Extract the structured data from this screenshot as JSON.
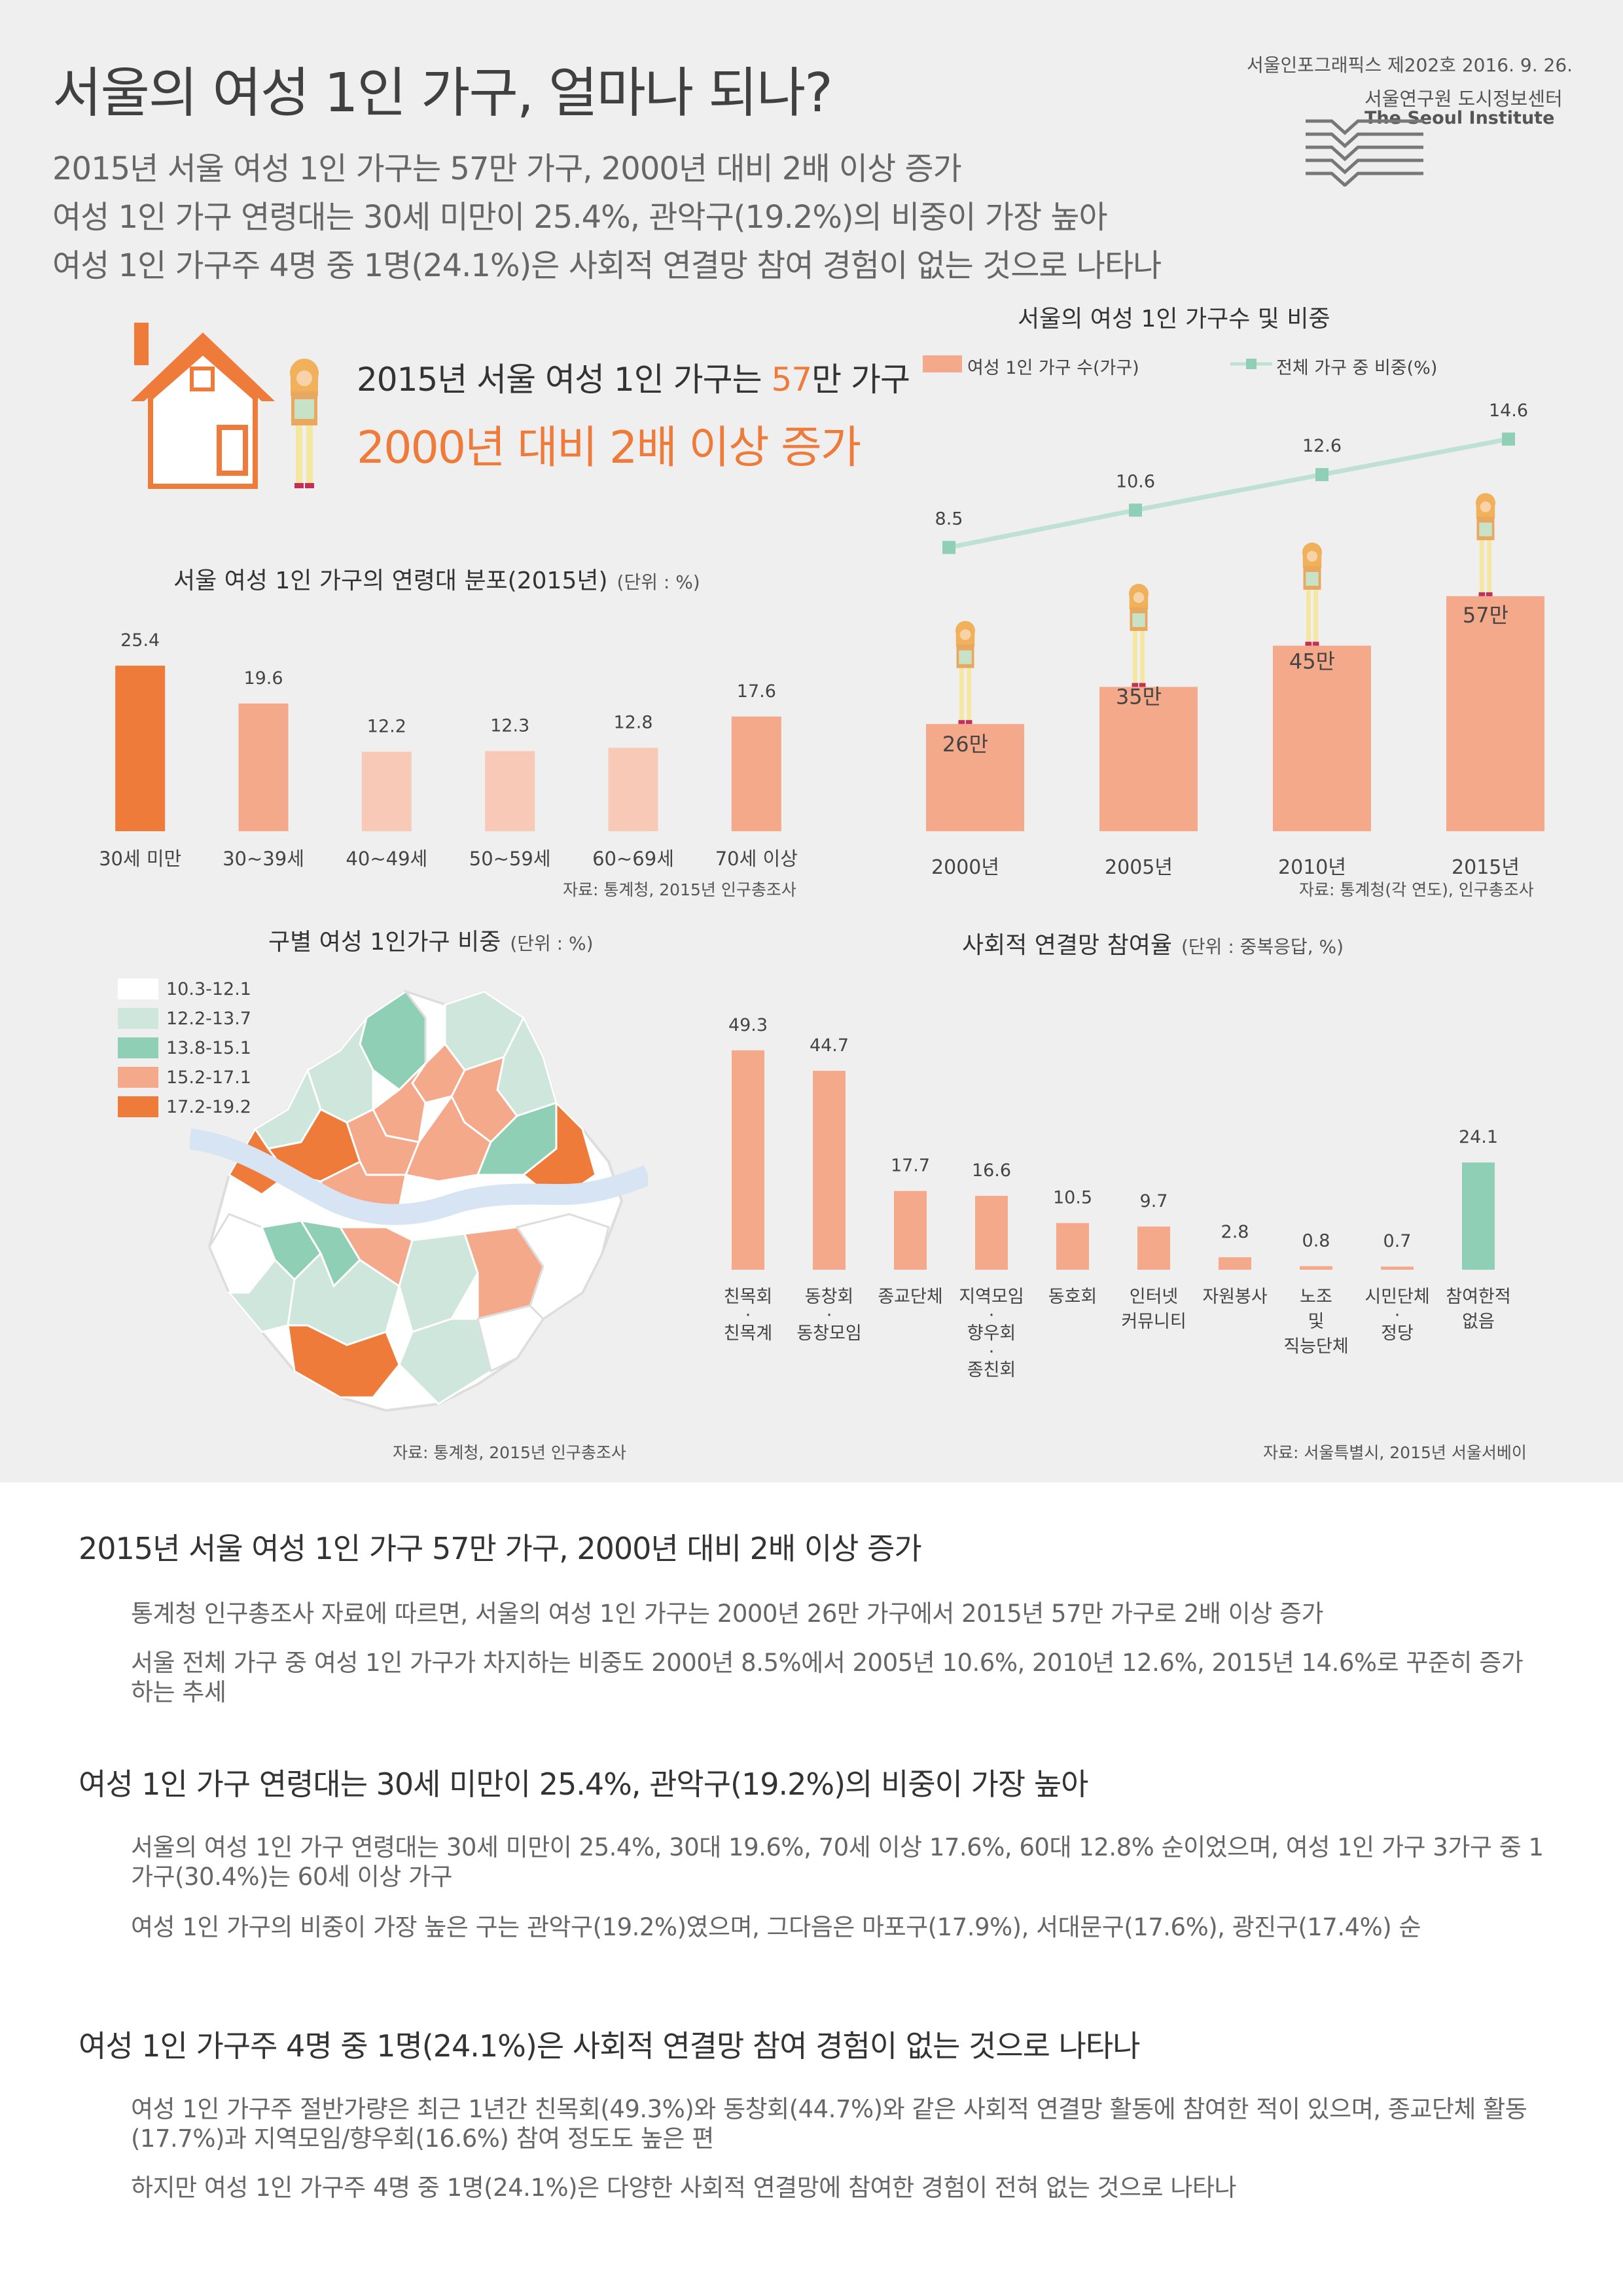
{
  "header": {
    "title": "서울의 여성 1인 가구, 얼마나 되나?",
    "subtitles": [
      "2015년 서울 여성 1인 가구는 57만 가구, 2000년 대비 2배 이상 증가",
      "여성 1인 가구 연령대는 30세 미만이 25.4%, 관악구(19.2%)의 비중이 가장 높아",
      "여성 1인 가구주 4명 중 1명(24.1%)은 사회적 연결망 참여 경험이 없는 것으로 나타나"
    ],
    "publication": "서울인포그래픽스 제202호 2016. 9. 26.",
    "institute_ko": "서울연구원 도시정보센터",
    "institute_en": "The Seoul Institute"
  },
  "headline": {
    "line1_prefix": "2015년 서울 여성 1인 가구는 ",
    "line1_accent": "57",
    "line1_suffix": "만 가구",
    "line2": "2000년 대비 2배 이상 증가"
  },
  "colors": {
    "accent": "#ee7b3a",
    "bar_light": "#f4a98a",
    "bar_pale": "#f8c9b6",
    "teal": "#8fcfb6",
    "teal_light": "#cfe6dc",
    "line": "#bfe0d4",
    "background": "#efefef"
  },
  "age_chart": {
    "title": "서울 여성 1인 가구의 연령대 분포(2015년)",
    "unit": "(단위 : %)",
    "source": "자료: 통계청, 2015년 인구총조사"
  },
  "trend_chart": {
    "title": "서울의 여성 1인 가구수 및 비중",
    "legend_bar": "여성 1인 가구 수(가구)",
    "legend_line": "전체 가구 중 비중(%)",
    "source": "자료: 통계청(각 연도), 인구총조사"
  },
  "map": {
    "title": "구별 여성 1인가구 비중",
    "unit": "(단위 : %)",
    "legend": [
      {
        "label": "10.3-12.1",
        "color": "#ffffff"
      },
      {
        "label": "12.2-13.7",
        "color": "#cfe6dc"
      },
      {
        "label": "13.8-15.1",
        "color": "#8fcfb6"
      },
      {
        "label": "15.2-17.1",
        "color": "#f4a98a"
      },
      {
        "label": "17.2-19.2",
        "color": "#ee7b3a"
      }
    ],
    "source": "자료: 통계청, 2015년 인구총조사"
  },
  "social_chart": {
    "title": "사회적 연결망 참여율",
    "unit": "(단위 : 중복응답, %)",
    "source": "자료: 서울특별시, 2015년 서울서베이"
  },
  "chart_data": [
    {
      "type": "bar",
      "title": "서울 여성 1인 가구의 연령대 분포(2015년)",
      "unit": "%",
      "categories": [
        "30세 미만",
        "30~39세",
        "40~49세",
        "50~59세",
        "60~69세",
        "70세 이상"
      ],
      "values": [
        25.4,
        19.6,
        12.2,
        12.3,
        12.8,
        17.6
      ],
      "value_labels": [
        "25.4",
        "19.6",
        "12.2",
        "12.3",
        "12.8",
        "17.6"
      ],
      "colors": [
        "#ee7b3a",
        "#f4a98a",
        "#f8c9b6",
        "#f8c9b6",
        "#f8c9b6",
        "#f4a98a"
      ]
    },
    {
      "type": "bar",
      "title": "서울의 여성 1인 가구수 및 비중",
      "categories": [
        "2000년",
        "2005년",
        "2010년",
        "2015년"
      ],
      "series": [
        {
          "name": "여성 1인 가구 수(가구)",
          "type": "bar",
          "values": [
            260000,
            350000,
            450000,
            570000
          ],
          "labels": [
            "26만",
            "35만",
            "45만",
            "57만"
          ]
        },
        {
          "name": "전체 가구 중 비중(%)",
          "type": "line",
          "values": [
            8.5,
            10.6,
            12.6,
            14.6
          ],
          "labels": [
            "8.5",
            "10.6",
            "12.6",
            "14.6"
          ]
        }
      ]
    },
    {
      "type": "bar",
      "title": "사회적 연결망 참여율",
      "unit": "중복응답, %",
      "categories": [
        [
          "친목회",
          "·",
          "친목계"
        ],
        [
          "동창회",
          "·",
          "동창모임"
        ],
        [
          "종교단체"
        ],
        [
          "지역모임",
          "·",
          "향우회",
          "·",
          "종친회"
        ],
        [
          "동호회"
        ],
        [
          "인터넷",
          "커뮤니티"
        ],
        [
          "자원봉사"
        ],
        [
          "노조",
          "및",
          "직능단체"
        ],
        [
          "시민단체",
          "·",
          "정당"
        ],
        [
          "참여한적",
          "없음"
        ]
      ],
      "values": [
        49.3,
        44.7,
        17.7,
        16.6,
        10.5,
        9.7,
        2.8,
        0.8,
        0.7,
        24.1
      ],
      "value_labels": [
        "49.3",
        "44.7",
        "17.7",
        "16.6",
        "10.5",
        "9.7",
        "2.8",
        "0.8",
        "0.7",
        "24.1"
      ],
      "colors": [
        "#f4a98a",
        "#f4a98a",
        "#f4a98a",
        "#f4a98a",
        "#f4a98a",
        "#f4a98a",
        "#f4a98a",
        "#f4a98a",
        "#f4a98a",
        "#8fcfb6"
      ]
    }
  ],
  "sections": [
    {
      "title": "2015년 서울 여성 1인 가구 57만 가구, 2000년 대비 2배 이상 증가",
      "paragraphs": [
        "통계청 인구총조사 자료에 따르면, 서울의 여성 1인 가구는 2000년 26만 가구에서 2015년 57만 가구로 2배 이상 증가",
        "서울 전체 가구 중 여성 1인 가구가 차지하는 비중도 2000년 8.5%에서 2005년 10.6%, 2010년 12.6%, 2015년 14.6%로 꾸준히 증가하는 추세"
      ]
    },
    {
      "title": "여성 1인 가구 연령대는 30세 미만이 25.4%, 관악구(19.2%)의 비중이 가장 높아",
      "paragraphs": [
        "서울의 여성 1인 가구 연령대는 30세 미만이 25.4%, 30대 19.6%, 70세 이상 17.6%, 60대 12.8% 순이었으며, 여성 1인 가구 3가구 중 1가구(30.4%)는 60세 이상 가구",
        "여성 1인 가구의 비중이 가장 높은 구는 관악구(19.2%)였으며, 그다음은 마포구(17.9%), 서대문구(17.6%), 광진구(17.4%) 순"
      ]
    },
    {
      "title": "여성 1인 가구주 4명 중 1명(24.1%)은 사회적 연결망 참여 경험이 없는 것으로 나타나",
      "paragraphs": [
        "여성 1인 가구주 절반가량은 최근 1년간 친목회(49.3%)와 동창회(44.7%)와 같은 사회적 연결망 활동에 참여한 적이 있으며, 종교단체 활동(17.7%)과 지역모임/향우회(16.6%) 참여 정도도 높은 편",
        "하지만 여성 1인 가구주 4명 중 1명(24.1%)은 다양한 사회적 연결망에 참여한 경험이 전혀 없는 것으로 나타나"
      ]
    }
  ]
}
